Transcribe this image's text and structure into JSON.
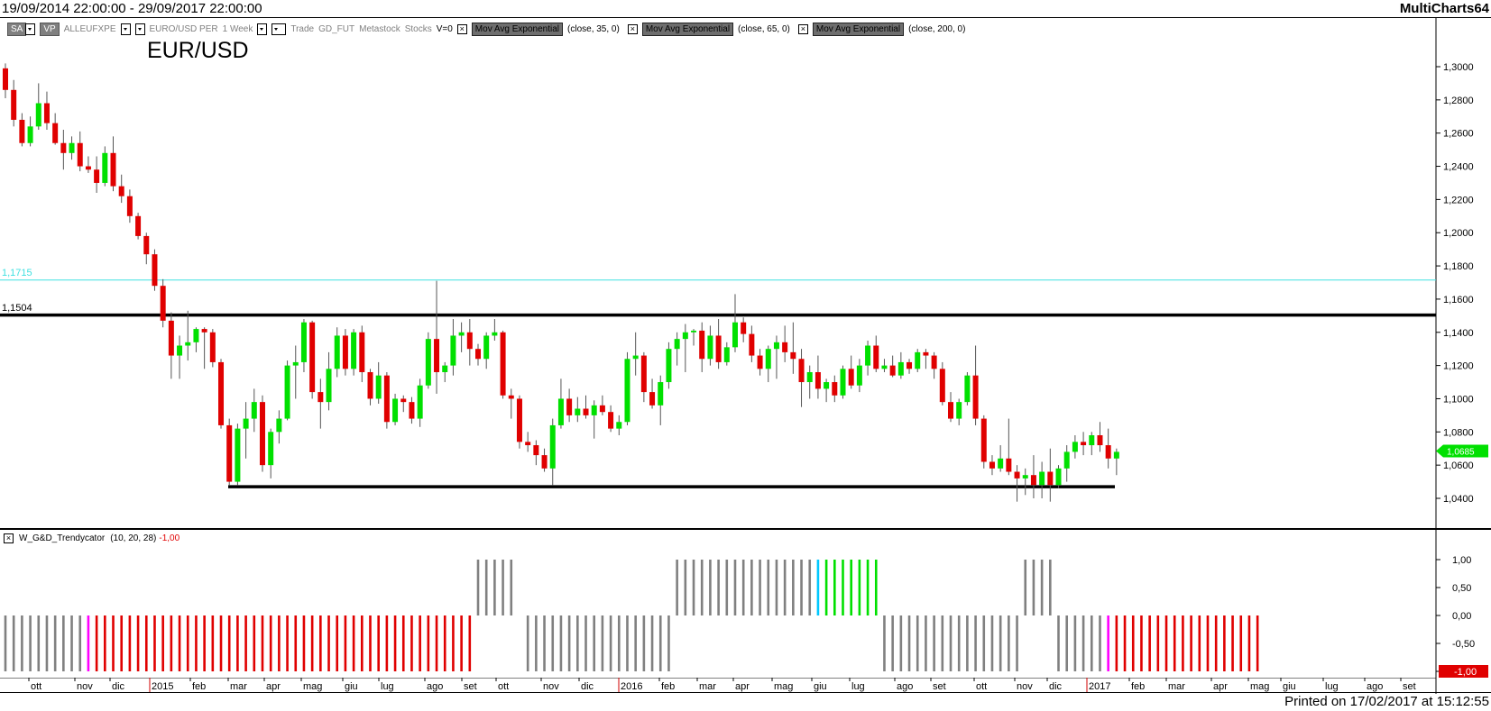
{
  "header": {
    "date_range": "19/09/2014 22:00:00 - 29/09/2017 22:00:00",
    "app_name": "MultiCharts64"
  },
  "toolbar": {
    "sa_label": "SA",
    "vp_label": "VP",
    "symbol_code": "ALLEUFXPE",
    "description": "EURO/USD PER",
    "interval": "1 Week",
    "r_label": "R",
    "mode": "Trade",
    "feed": "GD_FUT",
    "source": "Metastock",
    "asset": "Stocks",
    "volume": "V=0",
    "studies": [
      {
        "name": "Mov Avg Exponential",
        "params": "(close,  35,  0)"
      },
      {
        "name": "Mov Avg Exponential",
        "params": "(close,  65,  0)"
      },
      {
        "name": "Mov Avg Exponential",
        "params": "(close,  200,  0)"
      }
    ]
  },
  "chart_title": "EUR/USD",
  "levels": {
    "upper_cyan": "1,1715",
    "upper_black": "1,1504",
    "last_price": "1,0685"
  },
  "indicator": {
    "name": "W_G&D_Trendycator",
    "params": "(10,  20,  28)",
    "value": "-1,00"
  },
  "footer": "Printed on 17/02/2017 at 15:12:55",
  "colors": {
    "bull": "#00e000",
    "bear": "#e00000",
    "neutral": "#808080",
    "magenta": "#ff00ff",
    "cyan": "#00c8ff",
    "cyan_line": "#40e0e0"
  },
  "chart_data": [
    {
      "type": "candlestick",
      "title": "EUR/USD",
      "ylim": [
        1.025,
        1.325
      ],
      "y_ticks": [
        "1,3000",
        "1,2800",
        "1,2600",
        "1,2400",
        "1,2200",
        "1,2000",
        "1,1800",
        "1,1600",
        "1,1400",
        "1,1200",
        "1,1000",
        "1,0800",
        "1,0600",
        "1,0400"
      ],
      "x_ticks": [
        "ott",
        "nov",
        "dic",
        "2015",
        "feb",
        "mar",
        "apr",
        "mag",
        "giu",
        "lug",
        "ago",
        "set",
        "ott",
        "nov",
        "dic",
        "2016",
        "feb",
        "mar",
        "apr",
        "mag",
        "giu",
        "lug",
        "ago",
        "set",
        "ott",
        "nov",
        "dic",
        "2017",
        "feb",
        "mar",
        "apr",
        "mag",
        "giu",
        "lug",
        "ago",
        "set"
      ],
      "horizontal_lines": [
        1.1715,
        1.1504,
        1.047
      ],
      "candles": [
        [
          1.299,
          1.302,
          1.281,
          1.286
        ],
        [
          1.286,
          1.292,
          1.264,
          1.268
        ],
        [
          1.268,
          1.272,
          1.252,
          1.254
        ],
        [
          1.254,
          1.27,
          1.252,
          1.264
        ],
        [
          1.264,
          1.29,
          1.262,
          1.278
        ],
        [
          1.278,
          1.285,
          1.262,
          1.266
        ],
        [
          1.266,
          1.272,
          1.253,
          1.254
        ],
        [
          1.254,
          1.262,
          1.238,
          1.248
        ],
        [
          1.248,
          1.258,
          1.244,
          1.254
        ],
        [
          1.254,
          1.261,
          1.237,
          1.24
        ],
        [
          1.24,
          1.246,
          1.236,
          1.238
        ],
        [
          1.238,
          1.246,
          1.224,
          1.23
        ],
        [
          1.23,
          1.252,
          1.228,
          1.248
        ],
        [
          1.248,
          1.258,
          1.225,
          1.228
        ],
        [
          1.228,
          1.235,
          1.218,
          1.222
        ],
        [
          1.222,
          1.226,
          1.206,
          1.21
        ],
        [
          1.21,
          1.212,
          1.196,
          1.198
        ],
        [
          1.198,
          1.2,
          1.181,
          1.187
        ],
        [
          1.187,
          1.19,
          1.165,
          1.168
        ],
        [
          1.168,
          1.172,
          1.143,
          1.147
        ],
        [
          1.147,
          1.152,
          1.112,
          1.126
        ],
        [
          1.126,
          1.138,
          1.112,
          1.132
        ],
        [
          1.132,
          1.153,
          1.123,
          1.134
        ],
        [
          1.134,
          1.143,
          1.128,
          1.142
        ],
        [
          1.142,
          1.143,
          1.118,
          1.14
        ],
        [
          1.14,
          1.142,
          1.119,
          1.122
        ],
        [
          1.122,
          1.124,
          1.082,
          1.084
        ],
        [
          1.084,
          1.088,
          1.048,
          1.05
        ],
        [
          1.05,
          1.085,
          1.048,
          1.082
        ],
        [
          1.082,
          1.098,
          1.064,
          1.088
        ],
        [
          1.088,
          1.106,
          1.08,
          1.098
        ],
        [
          1.098,
          1.102,
          1.056,
          1.06
        ],
        [
          1.06,
          1.082,
          1.052,
          1.08
        ],
        [
          1.08,
          1.093,
          1.073,
          1.088
        ],
        [
          1.088,
          1.123,
          1.087,
          1.12
        ],
        [
          1.12,
          1.132,
          1.1,
          1.122
        ],
        [
          1.122,
          1.148,
          1.116,
          1.146
        ],
        [
          1.146,
          1.147,
          1.1,
          1.104
        ],
        [
          1.104,
          1.112,
          1.082,
          1.098
        ],
        [
          1.098,
          1.128,
          1.093,
          1.118
        ],
        [
          1.118,
          1.143,
          1.113,
          1.138
        ],
        [
          1.138,
          1.142,
          1.114,
          1.118
        ],
        [
          1.118,
          1.142,
          1.114,
          1.14
        ],
        [
          1.14,
          1.144,
          1.11,
          1.116
        ],
        [
          1.116,
          1.118,
          1.096,
          1.1
        ],
        [
          1.1,
          1.122,
          1.097,
          1.114
        ],
        [
          1.114,
          1.116,
          1.082,
          1.086
        ],
        [
          1.086,
          1.103,
          1.084,
          1.1
        ],
        [
          1.1,
          1.102,
          1.092,
          1.098
        ],
        [
          1.098,
          1.101,
          1.085,
          1.088
        ],
        [
          1.088,
          1.112,
          1.083,
          1.108
        ],
        [
          1.108,
          1.14,
          1.106,
          1.136
        ],
        [
          1.136,
          1.171,
          1.103,
          1.116
        ],
        [
          1.116,
          1.122,
          1.11,
          1.12
        ],
        [
          1.12,
          1.148,
          1.114,
          1.138
        ],
        [
          1.138,
          1.146,
          1.128,
          1.14
        ],
        [
          1.14,
          1.148,
          1.12,
          1.13
        ],
        [
          1.13,
          1.133,
          1.12,
          1.124
        ],
        [
          1.124,
          1.14,
          1.118,
          1.138
        ],
        [
          1.138,
          1.148,
          1.135,
          1.14
        ],
        [
          1.14,
          1.141,
          1.1,
          1.102
        ],
        [
          1.102,
          1.106,
          1.088,
          1.1
        ],
        [
          1.1,
          1.102,
          1.07,
          1.074
        ],
        [
          1.074,
          1.08,
          1.068,
          1.072
        ],
        [
          1.072,
          1.075,
          1.06,
          1.066
        ],
        [
          1.066,
          1.07,
          1.056,
          1.058
        ],
        [
          1.058,
          1.088,
          1.048,
          1.084
        ],
        [
          1.084,
          1.112,
          1.082,
          1.1
        ],
        [
          1.1,
          1.106,
          1.086,
          1.09
        ],
        [
          1.09,
          1.101,
          1.086,
          1.094
        ],
        [
          1.094,
          1.102,
          1.088,
          1.09
        ],
        [
          1.09,
          1.099,
          1.076,
          1.096
        ],
        [
          1.096,
          1.102,
          1.09,
          1.092
        ],
        [
          1.092,
          1.096,
          1.08,
          1.082
        ],
        [
          1.082,
          1.09,
          1.078,
          1.086
        ],
        [
          1.086,
          1.128,
          1.084,
          1.124
        ],
        [
          1.124,
          1.14,
          1.114,
          1.126
        ],
        [
          1.126,
          1.128,
          1.098,
          1.104
        ],
        [
          1.104,
          1.112,
          1.094,
          1.096
        ],
        [
          1.096,
          1.114,
          1.084,
          1.11
        ],
        [
          1.11,
          1.134,
          1.106,
          1.13
        ],
        [
          1.13,
          1.14,
          1.12,
          1.136
        ],
        [
          1.136,
          1.145,
          1.116,
          1.14
        ],
        [
          1.14,
          1.142,
          1.132,
          1.141
        ],
        [
          1.141,
          1.146,
          1.116,
          1.124
        ],
        [
          1.124,
          1.144,
          1.12,
          1.138
        ],
        [
          1.138,
          1.148,
          1.118,
          1.122
        ],
        [
          1.122,
          1.134,
          1.12,
          1.131
        ],
        [
          1.131,
          1.163,
          1.128,
          1.146
        ],
        [
          1.146,
          1.149,
          1.134,
          1.139
        ],
        [
          1.139,
          1.144,
          1.122,
          1.126
        ],
        [
          1.126,
          1.13,
          1.114,
          1.118
        ],
        [
          1.118,
          1.132,
          1.11,
          1.13
        ],
        [
          1.13,
          1.138,
          1.112,
          1.134
        ],
        [
          1.134,
          1.144,
          1.122,
          1.128
        ],
        [
          1.128,
          1.146,
          1.115,
          1.124
        ],
        [
          1.124,
          1.13,
          1.095,
          1.11
        ],
        [
          1.11,
          1.12,
          1.1,
          1.116
        ],
        [
          1.116,
          1.126,
          1.1,
          1.106
        ],
        [
          1.106,
          1.112,
          1.098,
          1.11
        ],
        [
          1.11,
          1.114,
          1.098,
          1.102
        ],
        [
          1.102,
          1.12,
          1.1,
          1.118
        ],
        [
          1.118,
          1.126,
          1.106,
          1.108
        ],
        [
          1.108,
          1.124,
          1.104,
          1.12
        ],
        [
          1.12,
          1.135,
          1.114,
          1.132
        ],
        [
          1.132,
          1.138,
          1.116,
          1.118
        ],
        [
          1.118,
          1.124,
          1.116,
          1.12
        ],
        [
          1.12,
          1.126,
          1.113,
          1.114
        ],
        [
          1.114,
          1.128,
          1.112,
          1.122
        ],
        [
          1.122,
          1.124,
          1.115,
          1.118
        ],
        [
          1.118,
          1.13,
          1.116,
          1.128
        ],
        [
          1.128,
          1.13,
          1.118,
          1.126
        ],
        [
          1.126,
          1.128,
          1.112,
          1.118
        ],
        [
          1.118,
          1.122,
          1.096,
          1.098
        ],
        [
          1.098,
          1.104,
          1.086,
          1.088
        ],
        [
          1.088,
          1.1,
          1.084,
          1.098
        ],
        [
          1.098,
          1.116,
          1.096,
          1.114
        ],
        [
          1.114,
          1.132,
          1.084,
          1.088
        ],
        [
          1.088,
          1.09,
          1.058,
          1.062
        ],
        [
          1.062,
          1.066,
          1.054,
          1.058
        ],
        [
          1.058,
          1.072,
          1.056,
          1.064
        ],
        [
          1.064,
          1.088,
          1.054,
          1.056
        ],
        [
          1.056,
          1.06,
          1.038,
          1.052
        ],
        [
          1.052,
          1.058,
          1.042,
          1.054
        ],
        [
          1.054,
          1.066,
          1.04,
          1.048
        ],
        [
          1.048,
          1.062,
          1.04,
          1.056
        ],
        [
          1.056,
          1.07,
          1.038,
          1.048
        ],
        [
          1.048,
          1.06,
          1.046,
          1.058
        ],
        [
          1.058,
          1.072,
          1.05,
          1.068
        ],
        [
          1.068,
          1.078,
          1.064,
          1.074
        ],
        [
          1.074,
          1.08,
          1.066,
          1.072
        ],
        [
          1.072,
          1.08,
          1.066,
          1.078
        ],
        [
          1.078,
          1.086,
          1.068,
          1.072
        ],
        [
          1.072,
          1.082,
          1.058,
          1.064
        ],
        [
          1.064,
          1.07,
          1.054,
          1.068
        ]
      ]
    },
    {
      "type": "bar",
      "title": "W_G&D_Trendycator",
      "ylim": [
        -1.15,
        1.15
      ],
      "y_ticks": [
        "1,00",
        "0,50",
        "0,00",
        "-0,50",
        "-1,00"
      ],
      "segments": [
        {
          "value": -1,
          "color": "neutral",
          "count": 10
        },
        {
          "value": -1,
          "color": "magenta",
          "count": 1
        },
        {
          "value": -1,
          "color": "bear",
          "count": 46
        },
        {
          "value": 1,
          "color": "neutral",
          "count": 5
        },
        {
          "value": 0,
          "color": "gap",
          "count": 1
        },
        {
          "value": -1,
          "color": "neutral",
          "count": 18
        },
        {
          "value": 1,
          "color": "neutral",
          "count": 17
        },
        {
          "value": 1,
          "color": "cyan",
          "count": 1
        },
        {
          "value": 1,
          "color": "bull",
          "count": 7
        },
        {
          "value": -1,
          "color": "neutral",
          "count": 17
        },
        {
          "value": 1,
          "color": "neutral",
          "count": 4
        },
        {
          "value": -1,
          "color": "neutral",
          "count": 6
        },
        {
          "value": -1,
          "color": "magenta",
          "count": 1
        },
        {
          "value": -1,
          "color": "bear",
          "count": 18
        }
      ]
    }
  ]
}
